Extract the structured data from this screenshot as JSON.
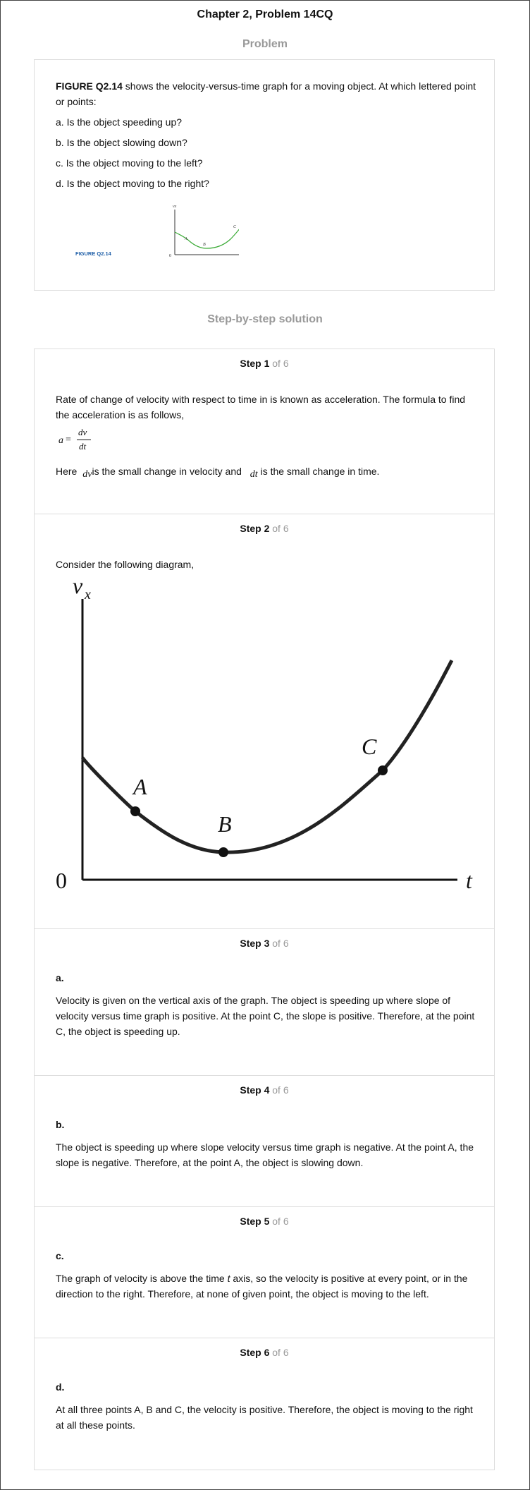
{
  "header": {
    "title": "Chapter 2, Problem 14CQ",
    "problem_heading": "Problem",
    "solution_heading": "Step-by-step solution"
  },
  "problem": {
    "figure_ref": "FIGURE Q2.14",
    "intro": " shows the velocity-versus-time graph for a moving object. At which lettered point or points:",
    "questions": [
      "a. Is the object speeding up?",
      "b. Is the object slowing down?",
      "c. Is the object moving to the left?",
      "d. Is the object moving to the right?"
    ],
    "thumb": {
      "caption": "FIGURE Q2.14",
      "y_axis": "vx",
      "x_axis": "t",
      "origin": "0",
      "points": [
        "A",
        "B",
        "C"
      ]
    }
  },
  "steps": [
    {
      "num": "Step 1",
      "of": " of 6",
      "text1": "Rate of change of velocity with respect to time in is known as acceleration. The formula to find the acceleration is as follows,",
      "formula": {
        "lhs": "a",
        "eq": "=",
        "num": "dv",
        "den": "dt"
      },
      "here_pre": "Here ",
      "dv": "dv",
      "here_mid": "is the small change in velocity and ",
      "dt": "dt",
      "here_post": "is the small change in time."
    },
    {
      "num": "Step 2",
      "of": " of 6",
      "text": "Consider the following diagram,",
      "graph": {
        "y_label": "v",
        "y_sub": "x",
        "x_label": "t",
        "origin": "0",
        "points": [
          "A",
          "B",
          "C"
        ]
      }
    },
    {
      "num": "Step 3",
      "of": " of 6",
      "label": "a.",
      "text": "Velocity is given on the vertical axis of the graph. The object is speeding up where slope of velocity versus time graph is positive. At the point C, the slope is positive. Therefore, at the point C, the object is speeding up."
    },
    {
      "num": "Step 4",
      "of": " of 6",
      "label": "b.",
      "text": "The object is speeding up where slope velocity versus time graph is negative. At the point A, the slope is negative. Therefore, at the point A, the object is slowing down."
    },
    {
      "num": "Step 5",
      "of": " of 6",
      "label": "c.",
      "text_pre": "The graph of velocity is above the time ",
      "t": "t",
      "text_post": " axis, so the velocity is positive at every point, or in the direction to the right. Therefore, at none of given point, the object is moving to the left."
    },
    {
      "num": "Step 6",
      "of": " of 6",
      "label": "d.",
      "text": "At all three points A, B and C, the velocity is positive. Therefore, the object is moving to the right at all these points."
    }
  ],
  "colors": {
    "muted_heading": "#999999",
    "figure_caption": "#1f5fa8",
    "curve_green": "#3aaa35",
    "border": "#dddddd"
  }
}
